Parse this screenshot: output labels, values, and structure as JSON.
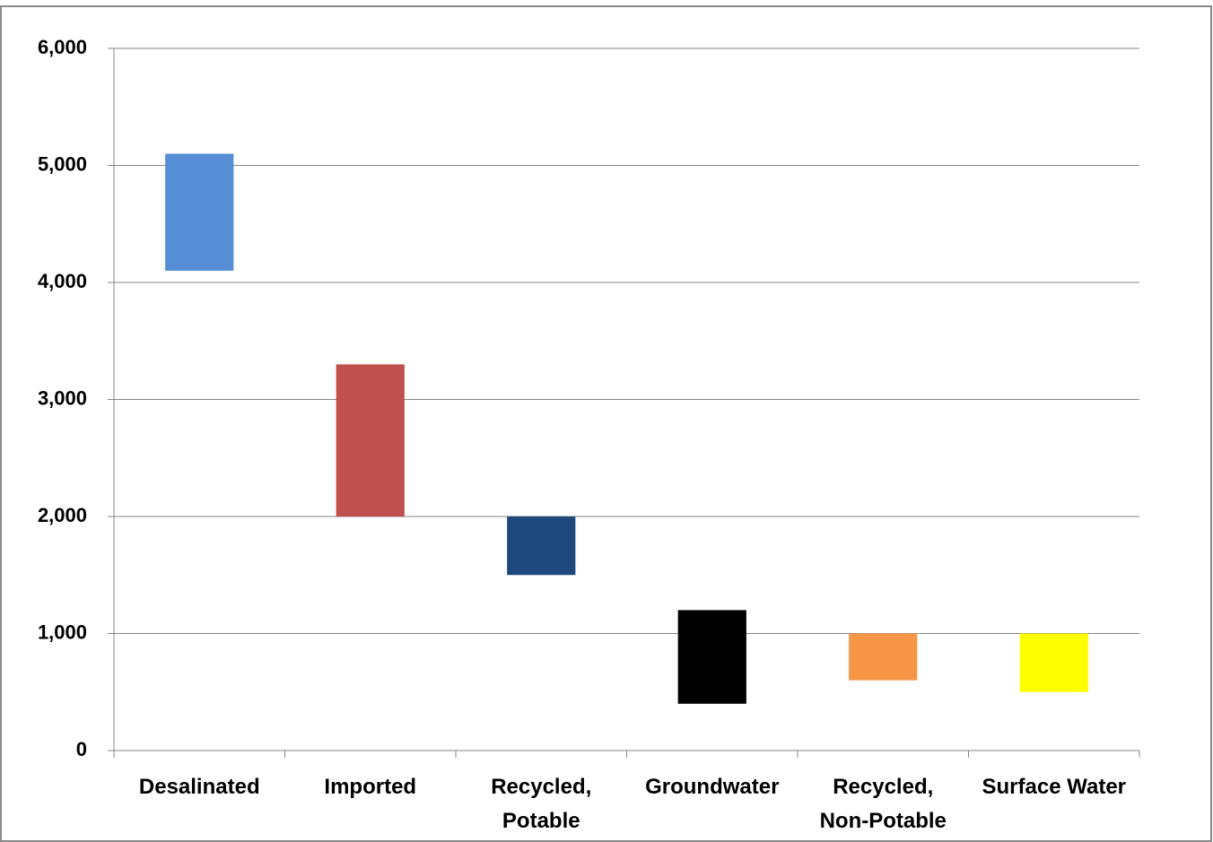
{
  "chart_data": {
    "type": "floating-bar",
    "categories": [
      "Desalinated",
      "Imported",
      "Recycled,\nPotable",
      "Groundwater",
      "Recycled,\nNon-Potable",
      "Surface Water"
    ],
    "low": [
      4100,
      2000,
      1500,
      400,
      600,
      500
    ],
    "high": [
      5100,
      3300,
      2000,
      1200,
      1000,
      1000
    ],
    "colors": [
      "#558ed5",
      "#c0504d",
      "#1f497d",
      "#000000",
      "#f79646",
      "#ffff00"
    ],
    "ylim": [
      0,
      6000
    ],
    "yticks": [
      0,
      {
        "value": 1000,
        "label": "1,000"
      },
      {
        "value": 2000,
        "label": "2,000"
      },
      {
        "value": 3000,
        "label": "3,000"
      },
      {
        "value": 4000,
        "label": "4,000"
      },
      {
        "value": 5000,
        "label": "5,000"
      },
      {
        "value": 6000,
        "label": "6,000"
      }
    ],
    "grid": true
  }
}
